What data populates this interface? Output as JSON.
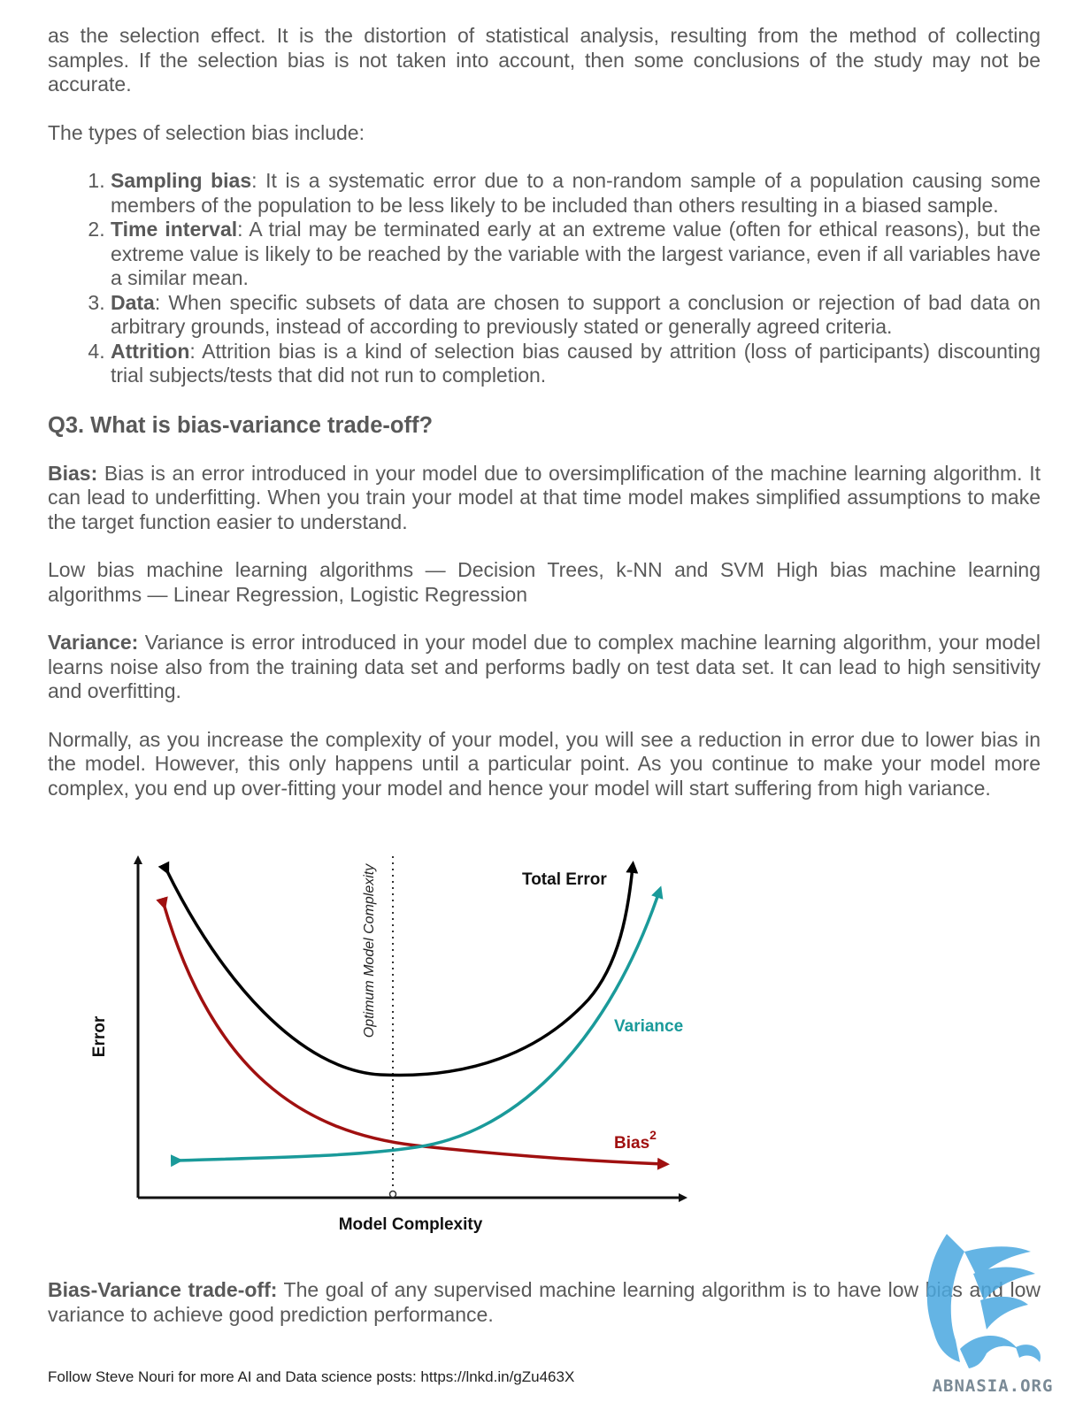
{
  "intro_para": "as the selection effect. It is the distortion of statistical analysis, resulting from the method of collecting samples. If the selection bias is not taken into account, then some conclusions of the study may not be accurate.",
  "types_intro": "The types of selection bias include:",
  "list": [
    {
      "term": "Sampling bias",
      "text": ": It is a systematic error due to a non-random sample of a population causing some members of the population to be less likely to be included than others resulting in a biased sample."
    },
    {
      "term": "Time interval",
      "text": ": A trial may be terminated early at an extreme value (often for ethical reasons), but the extreme value is likely to be reached by the variable with the largest variance, even if all variables have a similar mean."
    },
    {
      "term": "Data",
      "text": ": When specific subsets of data are chosen to support a conclusion or rejection of bad data on arbitrary grounds, instead of according to previously stated or generally agreed criteria."
    },
    {
      "term": "Attrition",
      "text": ": Attrition bias is a kind of selection bias caused by attrition (loss of participants) discounting trial subjects/tests that did not run to completion."
    }
  ],
  "heading": "Q3. What is bias-variance trade-off?",
  "bias_para": {
    "term": "Bias:",
    "text": " Bias is an error introduced in your model due to oversimplification of the machine learning algorithm. It can lead to underfitting. When you train your model at that time model makes simplified assumptions to make the target function easier to understand."
  },
  "algos_para": "Low bias machine learning algorithms — Decision Trees, k-NN and SVM High bias machine learning algorithms — Linear Regression, Logistic Regression",
  "variance_para": {
    "term": "Variance:",
    "text": " Variance is error introduced in your model due to complex machine learning algorithm, your model learns noise also from the training data set and performs badly on test data set. It can lead to high sensitivity and overfitting."
  },
  "normally_para": "Normally, as you increase the complexity of your model, you will see a reduction in error due to lower bias in the model. However, this only happens until a particular point. As you continue to make your model more complex, you end up over-fitting your model and hence your model will start suffering from high variance.",
  "chart": {
    "ylabel": "Error",
    "xlabel": "Model Complexity",
    "optimum_label": "Optimum Model Complexity",
    "total_label": "Total Error",
    "variance_label": "Variance",
    "bias_label": "Bias",
    "bias_sup": "2",
    "colors": {
      "total": "#000000",
      "variance": "#1a9a9a",
      "bias": "#a01010",
      "axis": "#111111"
    }
  },
  "tradeoff_para": {
    "term": "Bias-Variance trade-off:",
    "text": " The goal of any supervised machine learning algorithm is to have low bias and low variance to achieve good prediction performance."
  },
  "footer": "Follow Steve Nouri for more AI and Data science posts: https://lnkd.in/gZu463X",
  "logo": {
    "text": "ABNASIA.ORG",
    "color": "#4aa8e0"
  }
}
